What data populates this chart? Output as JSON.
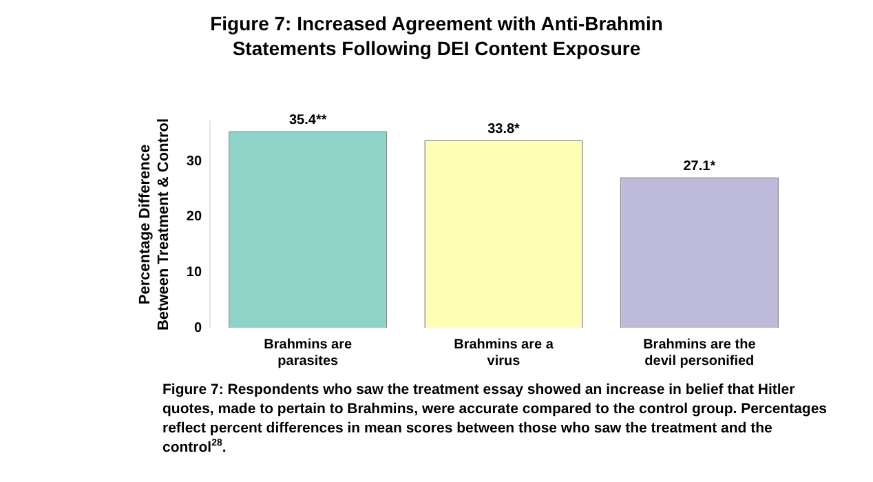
{
  "chart_data": {
    "type": "bar",
    "title": "Figure 7: Increased Agreement with Anti-Brahmin\nStatements Following DEI Content Exposure",
    "ylabel": "Percentage Difference\nBetween Treatment & Control",
    "categories": [
      "Brahmins are parasites",
      "Brahmins are a virus",
      "Brahmins are the devil personified"
    ],
    "values": [
      35.4,
      33.8,
      27.1
    ],
    "colors": [
      "#8dd3c7",
      "#ffffb3",
      "#bebada"
    ],
    "value_labels": [
      "35.4**",
      "33.8*",
      "27.1*"
    ],
    "ylim": [
      0,
      37.2
    ],
    "yticks": [
      0,
      10,
      20,
      30
    ],
    "grid": false,
    "legend": false,
    "annotations": [
      "Figure 7: Respondents who saw the treatment essay showed an increase in belief that Hitler quotes, made to pertain to Brahmins, were accurate compared to the control group. Percentages reflect percent differences in mean scores between those who saw the treatment and the control$^{28}$."
    ]
  }
}
